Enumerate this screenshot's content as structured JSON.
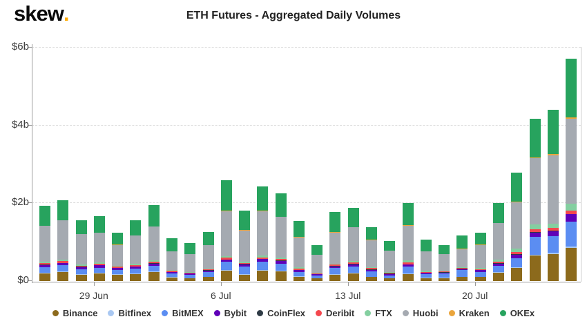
{
  "header": {
    "logo_text": "skew",
    "logo_dot": ".",
    "title": "ETH Futures - Aggregated Daily Volumes"
  },
  "colors": {
    "brand_orange": "#ffab00",
    "grid": "#dddddd",
    "axis": "#9a9a9a",
    "text": "#333333"
  },
  "chart_data": {
    "type": "bar",
    "stacked": true,
    "title": "ETH Futures - Aggregated Daily Volumes",
    "unit": "USD billions",
    "ylim": [
      0,
      6
    ],
    "grid": "dashed-horizontal",
    "legend_position": "bottom",
    "y_ticks": [
      {
        "label": "$6b",
        "value": 6
      },
      {
        "label": "$4b",
        "value": 4
      },
      {
        "label": "$2b",
        "value": 2
      },
      {
        "label": "$0",
        "value": 0
      }
    ],
    "x_ticks": [
      {
        "label": "29 Jun",
        "index": 3
      },
      {
        "label": "6 Jul",
        "index": 10
      },
      {
        "label": "13 Jul",
        "index": 17
      },
      {
        "label": "20 Jul",
        "index": 24
      }
    ],
    "categories": [
      "26 Jun",
      "27 Jun",
      "28 Jun",
      "29 Jun",
      "30 Jun",
      "1 Jul",
      "2 Jul",
      "3 Jul",
      "4 Jul",
      "5 Jul",
      "6 Jul",
      "7 Jul",
      "8 Jul",
      "9 Jul",
      "10 Jul",
      "11 Jul",
      "12 Jul",
      "13 Jul",
      "14 Jul",
      "15 Jul",
      "16 Jul",
      "17 Jul",
      "18 Jul",
      "19 Jul",
      "20 Jul",
      "21 Jul",
      "22 Jul",
      "23 Jul",
      "24 Jul",
      "25 Jul"
    ],
    "series": [
      {
        "name": "Binance",
        "color": "#8c6a1c",
        "values": [
          0.2,
          0.23,
          0.16,
          0.2,
          0.16,
          0.17,
          0.23,
          0.09,
          0.07,
          0.1,
          0.26,
          0.16,
          0.27,
          0.25,
          0.11,
          0.07,
          0.16,
          0.19,
          0.1,
          0.07,
          0.17,
          0.08,
          0.08,
          0.1,
          0.1,
          0.22,
          0.34,
          0.65,
          0.7,
          0.85
        ]
      },
      {
        "name": "Bitfinex",
        "color": "#a9c8f2",
        "values": [
          0.02,
          0.02,
          0.02,
          0.02,
          0.02,
          0.02,
          0.02,
          0.01,
          0.01,
          0.01,
          0.02,
          0.02,
          0.02,
          0.02,
          0.01,
          0.01,
          0.02,
          0.02,
          0.01,
          0.01,
          0.02,
          0.01,
          0.01,
          0.01,
          0.01,
          0.02,
          0.02,
          0.03,
          0.03,
          0.03
        ]
      },
      {
        "name": "BitMEX",
        "color": "#5b8df2",
        "values": [
          0.13,
          0.15,
          0.13,
          0.12,
          0.11,
          0.13,
          0.14,
          0.1,
          0.08,
          0.12,
          0.22,
          0.19,
          0.2,
          0.18,
          0.12,
          0.06,
          0.15,
          0.17,
          0.14,
          0.07,
          0.18,
          0.09,
          0.1,
          0.17,
          0.13,
          0.16,
          0.22,
          0.45,
          0.42,
          0.64
        ]
      },
      {
        "name": "Bybit",
        "color": "#5f00b8",
        "values": [
          0.06,
          0.06,
          0.05,
          0.06,
          0.04,
          0.05,
          0.06,
          0.03,
          0.03,
          0.04,
          0.05,
          0.06,
          0.07,
          0.07,
          0.04,
          0.03,
          0.05,
          0.05,
          0.04,
          0.03,
          0.05,
          0.03,
          0.03,
          0.03,
          0.04,
          0.05,
          0.1,
          0.12,
          0.13,
          0.2
        ]
      },
      {
        "name": "CoinFlex",
        "color": "#2e3a45",
        "values": [
          0.01,
          0.01,
          0.01,
          0.01,
          0.01,
          0.01,
          0.01,
          0.01,
          0.01,
          0.01,
          0.01,
          0.01,
          0.01,
          0.01,
          0.01,
          0.01,
          0.01,
          0.01,
          0.01,
          0.01,
          0.01,
          0.01,
          0.01,
          0.01,
          0.01,
          0.01,
          0.01,
          0.01,
          0.01,
          0.01
        ]
      },
      {
        "name": "Deribit",
        "color": "#f4474e",
        "values": [
          0.04,
          0.05,
          0.03,
          0.04,
          0.03,
          0.03,
          0.04,
          0.02,
          0.02,
          0.02,
          0.05,
          0.03,
          0.04,
          0.04,
          0.03,
          0.02,
          0.03,
          0.04,
          0.03,
          0.02,
          0.05,
          0.02,
          0.02,
          0.02,
          0.02,
          0.03,
          0.06,
          0.08,
          0.08,
          0.09
        ]
      },
      {
        "name": "FTX",
        "color": "#84cfa0",
        "values": [
          0.04,
          0.04,
          0.03,
          0.03,
          0.02,
          0.03,
          0.03,
          0.02,
          0.02,
          0.02,
          0.03,
          0.03,
          0.04,
          0.03,
          0.03,
          0.02,
          0.03,
          0.03,
          0.02,
          0.02,
          0.05,
          0.02,
          0.02,
          0.02,
          0.02,
          0.06,
          0.08,
          0.12,
          0.11,
          0.17
        ]
      },
      {
        "name": "Huobi",
        "color": "#a5aab1",
        "values": [
          0.92,
          1.0,
          0.77,
          0.76,
          0.54,
          0.73,
          0.87,
          0.48,
          0.45,
          0.6,
          1.16,
          0.8,
          1.15,
          1.05,
          0.77,
          0.45,
          0.8,
          0.87,
          0.7,
          0.55,
          0.9,
          0.5,
          0.42,
          0.46,
          0.6,
          0.94,
          1.2,
          1.7,
          1.76,
          2.18
        ]
      },
      {
        "name": "Kraken",
        "color": "#eaa53c",
        "values": [
          0.01,
          0.01,
          0.01,
          0.01,
          0.01,
          0.01,
          0.01,
          0.01,
          0.01,
          0.01,
          0.01,
          0.01,
          0.01,
          0.01,
          0.01,
          0.01,
          0.01,
          0.01,
          0.01,
          0.01,
          0.01,
          0.01,
          0.01,
          0.01,
          0.01,
          0.01,
          0.02,
          0.02,
          0.02,
          0.03
        ]
      },
      {
        "name": "OKEx",
        "color": "#27a35e",
        "values": [
          0.5,
          0.51,
          0.35,
          0.42,
          0.31,
          0.39,
          0.54,
          0.33,
          0.27,
          0.33,
          0.79,
          0.51,
          0.63,
          0.59,
          0.42,
          0.25,
          0.51,
          0.49,
          0.32,
          0.24,
          0.57,
          0.29,
          0.23,
          0.34,
          0.3,
          0.5,
          0.73,
          1.0,
          1.14,
          1.52
        ]
      }
    ]
  }
}
